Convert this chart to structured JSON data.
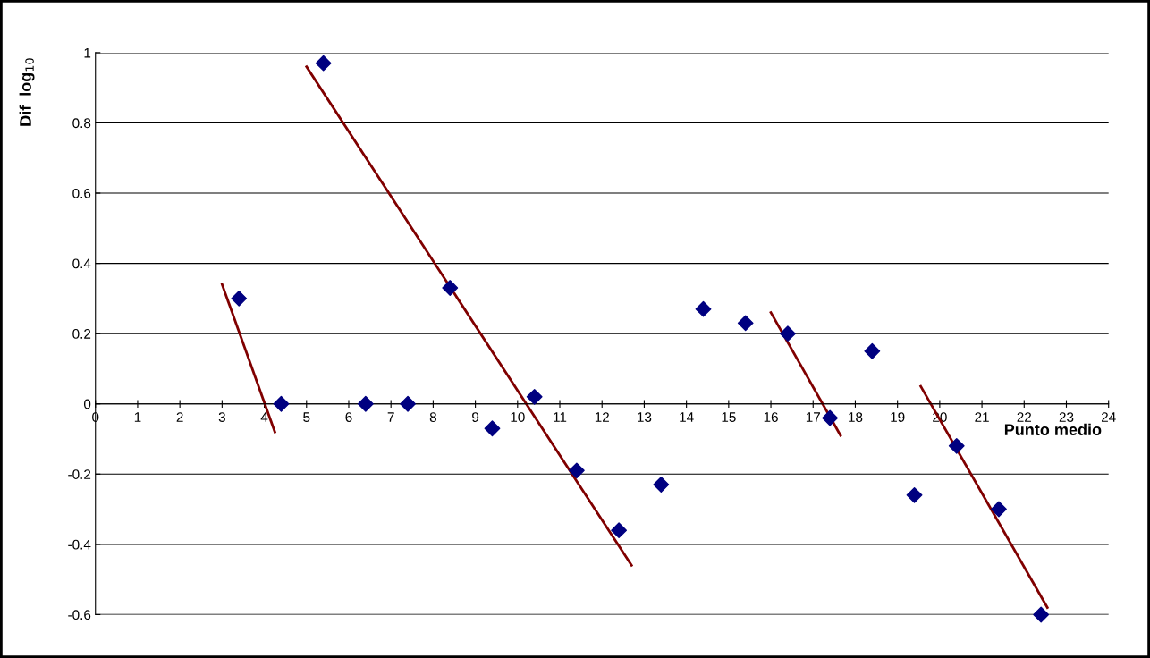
{
  "chart_data": {
    "type": "scatter",
    "xlabel": "Punto medio",
    "ylabel": "Dif  log$_{10}$",
    "xlim": [
      0,
      24
    ],
    "xticks": [
      0,
      1,
      2,
      3,
      4,
      5,
      6,
      7,
      8,
      9,
      10,
      11,
      12,
      13,
      14,
      15,
      16,
      17,
      18,
      19,
      20,
      21,
      22,
      23,
      24
    ],
    "ylim": [
      -0.6,
      1
    ],
    "yticks": [
      -0.6,
      -0.4,
      -0.2,
      0,
      0.2,
      0.4,
      0.6,
      0.8,
      1
    ],
    "grid": "y",
    "marker": "diamond",
    "series": [
      {
        "color": "#000080",
        "x": [
          3.4,
          4.4,
          5.4,
          6.4,
          7.4,
          8.4,
          9.4,
          10.4,
          11.4,
          12.4,
          13.4,
          14.4,
          15.4,
          16.4,
          17.4,
          18.4,
          19.4,
          20.4,
          21.4,
          22.4
        ],
        "values": [
          0.3,
          0,
          0.97,
          0,
          0,
          0.33,
          -0.07,
          0.02,
          -0.19,
          -0.36,
          -0.23,
          0.27,
          0.23,
          0.2,
          -0.04,
          0.15,
          -0.26,
          -0.12,
          -0.3,
          -0.6
        ]
      },
      {
        "type": "line",
        "color": "#800000",
        "marker": "none",
        "x": [
          3.0,
          4.25
        ],
        "values": [
          0.34,
          -0.08
        ]
      },
      {
        "type": "line",
        "color": "#800000",
        "marker": "none",
        "x": [
          5.0,
          12.7
        ],
        "values": [
          0.96,
          -0.46
        ]
      },
      {
        "type": "line",
        "color": "#800000",
        "marker": "none",
        "x": [
          16.0,
          17.65
        ],
        "values": [
          0.26,
          -0.09
        ]
      },
      {
        "type": "line",
        "color": "#800000",
        "marker": "none",
        "x": [
          19.55,
          22.55
        ],
        "values": [
          0.05,
          -0.58
        ]
      }
    ]
  }
}
